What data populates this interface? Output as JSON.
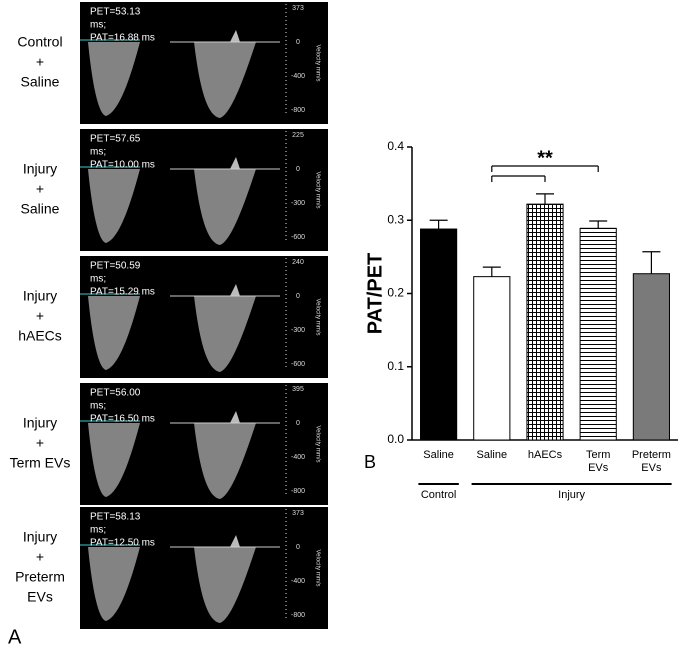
{
  "panel_a": {
    "label": "A",
    "rows": [
      {
        "label": [
          "Control",
          "+",
          "Saline"
        ],
        "measure": [
          "PET=53.13",
          "ms;",
          "PAT=16.88  ms"
        ],
        "scale": [
          373,
          0,
          -400,
          -800
        ],
        "scale_title": "Velocity mm/s"
      },
      {
        "label": [
          "Injury",
          "+",
          "Saline"
        ],
        "measure": [
          "PET=57.65",
          "ms;",
          "PAT=10.00  ms"
        ],
        "scale": [
          225,
          0,
          -300,
          -600
        ],
        "scale_title": "Velocity mm/s"
      },
      {
        "label": [
          "Injury",
          "+",
          "hAECs"
        ],
        "measure": [
          "PET=50.59",
          "ms;",
          "PAT=15.29  ms"
        ],
        "scale": [
          240,
          0,
          -300,
          -600
        ],
        "scale_title": "Velocity mm/s"
      },
      {
        "label": [
          "Injury",
          "+",
          "Term EVs"
        ],
        "measure": [
          "PET=56.00",
          "ms;",
          "PAT=16.50  ms"
        ],
        "scale": [
          395,
          0,
          -400,
          -800
        ],
        "scale_title": "Velocity mm/s"
      },
      {
        "label": [
          "Injury",
          "+",
          "Preterm",
          "EVs"
        ],
        "measure": [
          "PET=58.13",
          "ms;",
          "PAT=12.50  ms"
        ],
        "scale": [
          373,
          0,
          -400,
          -800
        ],
        "scale_title": "Velocity mm/s"
      }
    ]
  },
  "chart_data": {
    "type": "bar",
    "panel_label": "B",
    "y_label": "PAT/PET",
    "categories": [
      "Saline",
      "Saline",
      "hAECs",
      "Term EVs",
      "Preterm EVs"
    ],
    "values": [
      0.288,
      0.223,
      0.322,
      0.289,
      0.227
    ],
    "errors": [
      0.012,
      0.013,
      0.014,
      0.01,
      0.03
    ],
    "fills": [
      "solid",
      "none",
      "grid",
      "hlines",
      "solid"
    ],
    "colors": [
      "#000000",
      "#ffffff",
      "#000000",
      "#000000",
      "#7a7a7a"
    ],
    "ylim": [
      0,
      0.4
    ],
    "yticks": [
      {
        "value": 0,
        "label": "0.0"
      },
      {
        "value": 0.1,
        "label": "0.1"
      },
      {
        "value": 0.2,
        "label": "0.2"
      },
      {
        "value": 0.3,
        "label": "0.3"
      },
      {
        "value": 0.4,
        "label": "0.4"
      }
    ],
    "groups": [
      {
        "name": "Control",
        "members": [
          0
        ]
      },
      {
        "name": "Injury",
        "members": [
          1,
          2,
          3,
          4
        ]
      }
    ],
    "significance": {
      "label": "**",
      "pairs": [
        [
          1,
          3
        ],
        [
          1,
          2
        ]
      ]
    }
  }
}
